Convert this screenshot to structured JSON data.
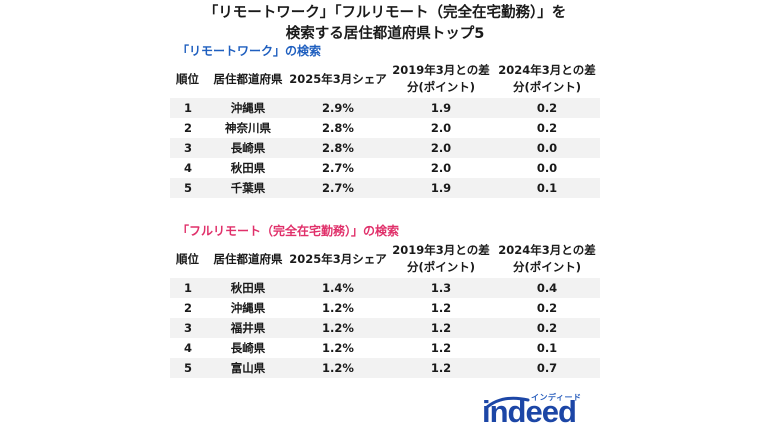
{
  "title": {
    "line1": "「リモートワーク」「フルリモート（完全在宅勤務）」を",
    "line2": "検索する居住都道府県トップ5"
  },
  "colors": {
    "remote_heading": "#1f5fbf",
    "full_remote_heading": "#e0306a",
    "logo": "#1c46a6"
  },
  "remote": {
    "heading": "「リモートワーク」の検索",
    "headers": [
      "順位",
      "居住都道府県",
      "2025年3月シェア",
      "2019年3月との差分(ポイント)",
      "2024年3月との差分(ポイント)"
    ],
    "rows": [
      [
        "1",
        "沖縄県",
        "2.9%",
        "1.9",
        "0.2"
      ],
      [
        "2",
        "神奈川県",
        "2.8%",
        "2.0",
        "0.2"
      ],
      [
        "3",
        "長崎県",
        "2.8%",
        "2.0",
        "0.0"
      ],
      [
        "4",
        "秋田県",
        "2.7%",
        "2.0",
        "0.0"
      ],
      [
        "5",
        "千葉県",
        "2.7%",
        "1.9",
        "0.1"
      ]
    ]
  },
  "full_remote": {
    "heading": "「フルリモート（完全在宅勤務）」の検索",
    "headers": [
      "順位",
      "居住都道府県",
      "2025年3月シェア",
      "2019年3月との差分(ポイント)",
      "2024年3月との差分(ポイント)"
    ],
    "rows": [
      [
        "1",
        "秋田県",
        "1.4%",
        "1.3",
        "0.4"
      ],
      [
        "2",
        "沖縄県",
        "1.2%",
        "1.2",
        "0.2"
      ],
      [
        "3",
        "福井県",
        "1.2%",
        "1.2",
        "0.2"
      ],
      [
        "4",
        "長崎県",
        "1.2%",
        "1.2",
        "0.1"
      ],
      [
        "5",
        "富山県",
        "1.2%",
        "1.2",
        "0.7"
      ]
    ]
  },
  "logo": {
    "kana": "インディード",
    "word": "indeed"
  }
}
